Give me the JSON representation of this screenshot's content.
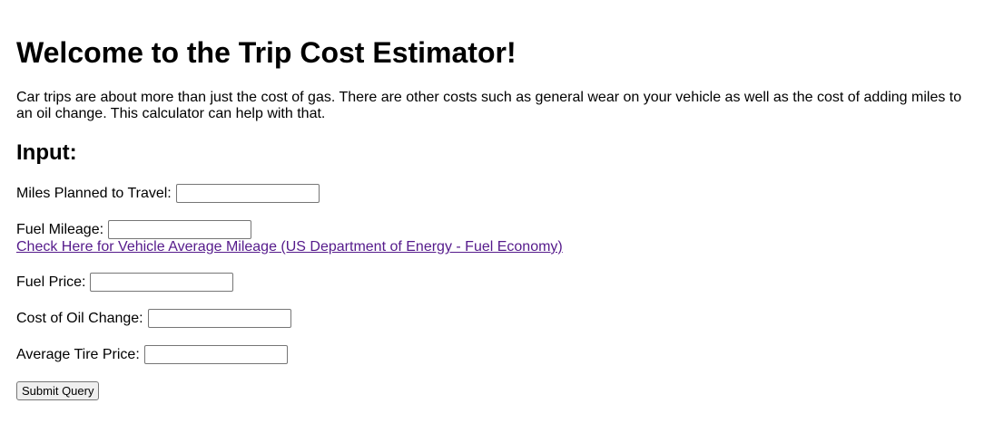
{
  "header": {
    "title": "Welcome to the Trip Cost Estimator!",
    "intro": "Car trips are about more than just the cost of gas. There are other costs such as general wear on your vehicle as well as the cost of adding miles to an oil change. This calculator can help with that."
  },
  "form": {
    "section_title": "Input:",
    "fields": {
      "miles": {
        "label": "Miles Planned to Travel:",
        "value": "",
        "placeholder": ""
      },
      "fuel_mileage": {
        "label": "Fuel Mileage:",
        "value": "",
        "placeholder": ""
      },
      "fuel_price": {
        "label": "Fuel Price:",
        "value": "",
        "placeholder": ""
      },
      "oil_change": {
        "label": "Cost of Oil Change:",
        "value": "",
        "placeholder": ""
      },
      "tire_price": {
        "label": "Average Tire Price:",
        "value": "",
        "placeholder": ""
      }
    },
    "mileage_link": "Check Here for Vehicle Average Mileage (US Department of Energy - Fuel Economy)",
    "submit_label": "Submit Query"
  },
  "colors": {
    "link_visited": "#551a8b",
    "button_bg": "#efefef"
  }
}
